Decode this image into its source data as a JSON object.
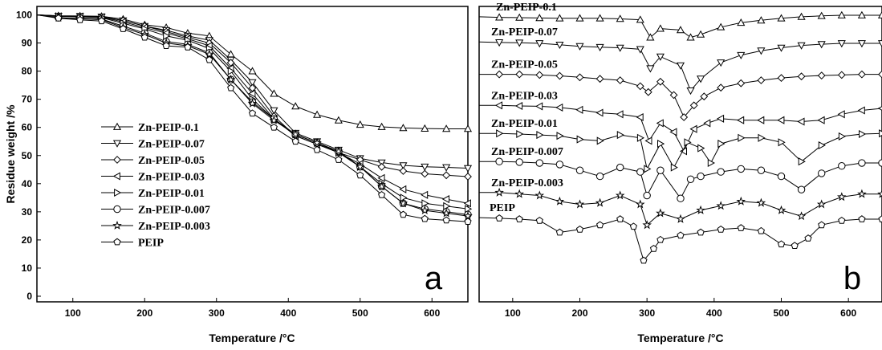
{
  "chart_data": [
    {
      "type": "line",
      "panel_label": "a",
      "xlabel": "Temperature /°C",
      "ylabel": "Residue weight /%",
      "xlim": [
        50,
        650
      ],
      "ylim": [
        -2,
        103
      ],
      "xticks": [
        100,
        200,
        300,
        400,
        500,
        600
      ],
      "yticks": [
        0,
        10,
        20,
        30,
        40,
        50,
        60,
        70,
        80,
        90,
        100
      ],
      "legend_position": "left",
      "series": [
        {
          "name": "Zn-PEIP-0.1",
          "marker": "triangle-up",
          "x": [
            50,
            80,
            110,
            140,
            170,
            200,
            230,
            260,
            290,
            320,
            350,
            380,
            410,
            440,
            470,
            500,
            530,
            560,
            590,
            620,
            650
          ],
          "y": [
            100,
            99.7,
            99.6,
            99.5,
            98.5,
            96.5,
            95.5,
            93.5,
            92.5,
            86,
            80,
            72,
            67.5,
            64.5,
            62.5,
            61,
            60.2,
            59.8,
            59.6,
            59.5,
            59.5
          ]
        },
        {
          "name": "Zn-PEIP-0.07",
          "marker": "triangle-down",
          "x": [
            50,
            80,
            110,
            140,
            170,
            200,
            230,
            260,
            290,
            320,
            350,
            380,
            410,
            440,
            470,
            500,
            530,
            560,
            590,
            620,
            650
          ],
          "y": [
            100,
            99.6,
            99.5,
            99.3,
            98,
            96,
            94.5,
            92.5,
            91,
            84,
            76,
            66,
            58,
            55,
            52,
            49,
            47.5,
            46.5,
            46,
            45.8,
            45.5
          ]
        },
        {
          "name": "Zn-PEIP-0.05",
          "marker": "diamond",
          "x": [
            50,
            80,
            110,
            140,
            170,
            200,
            230,
            260,
            290,
            320,
            350,
            380,
            410,
            440,
            470,
            500,
            530,
            560,
            590,
            620,
            650
          ],
          "y": [
            100,
            99.6,
            99.5,
            99.3,
            98,
            96,
            94,
            92,
            90,
            83,
            74,
            64,
            57,
            54,
            51,
            48.5,
            46,
            44.5,
            43.5,
            43,
            42.5
          ]
        },
        {
          "name": "Zn-PEIP-0.03",
          "marker": "triangle-left",
          "x": [
            50,
            80,
            110,
            140,
            170,
            200,
            230,
            260,
            290,
            320,
            350,
            380,
            410,
            440,
            470,
            500,
            530,
            560,
            590,
            620,
            650
          ],
          "y": [
            100,
            99.5,
            99.4,
            99.2,
            97.5,
            95.5,
            93.5,
            91.5,
            89,
            81,
            72,
            63,
            57,
            54,
            51,
            47,
            42,
            38,
            36,
            34.5,
            33
          ]
        },
        {
          "name": "Zn-PEIP-0.01",
          "marker": "triangle-right",
          "x": [
            50,
            80,
            110,
            140,
            170,
            200,
            230,
            260,
            290,
            320,
            350,
            380,
            410,
            440,
            470,
            500,
            530,
            560,
            590,
            620,
            650
          ],
          "y": [
            100,
            99.5,
            99.3,
            99,
            97,
            95,
            92.5,
            91,
            88,
            80,
            70,
            63,
            57.5,
            54.5,
            51,
            46,
            40,
            35,
            33,
            32,
            31
          ]
        },
        {
          "name": "Zn-PEIP-0.007",
          "marker": "circle",
          "x": [
            50,
            80,
            110,
            140,
            170,
            200,
            230,
            260,
            290,
            320,
            350,
            380,
            410,
            440,
            470,
            500,
            530,
            560,
            590,
            620,
            650
          ],
          "y": [
            100,
            99,
            98.8,
            98.5,
            96,
            93.5,
            90.5,
            89.5,
            86.5,
            77,
            69,
            63,
            57.5,
            54.5,
            51.5,
            46,
            39,
            33,
            31,
            30,
            29
          ]
        },
        {
          "name": "Zn-PEIP-0.003",
          "marker": "star",
          "x": [
            50,
            80,
            110,
            140,
            170,
            200,
            230,
            260,
            290,
            320,
            350,
            380,
            410,
            440,
            470,
            500,
            530,
            560,
            590,
            620,
            650
          ],
          "y": [
            100,
            99,
            98.6,
            98.3,
            95.5,
            93,
            90,
            89,
            86,
            77,
            68.5,
            62.5,
            57.5,
            54.5,
            51.5,
            46,
            39,
            33,
            30.5,
            29.5,
            28.5
          ]
        },
        {
          "name": "PEIP",
          "marker": "pentagon",
          "x": [
            50,
            80,
            110,
            140,
            170,
            200,
            230,
            260,
            290,
            320,
            350,
            380,
            410,
            440,
            470,
            500,
            530,
            560,
            590,
            620,
            650
          ],
          "y": [
            100,
            98.8,
            98.2,
            97.8,
            95,
            92,
            89,
            88.5,
            84,
            74,
            65,
            60,
            55,
            52,
            48.5,
            43,
            36,
            29,
            27.5,
            27,
            26.5
          ]
        }
      ]
    },
    {
      "type": "line",
      "panel_label": "b",
      "xlabel": "Temperature /°C",
      "ylabel": "",
      "xlim": [
        50,
        650
      ],
      "ylim": [
        0,
        100
      ],
      "xticks": [
        100,
        200,
        300,
        400,
        500,
        600
      ],
      "yticks_shown": false,
      "series": [
        {
          "name": "Zn-PEIP-0.1",
          "marker": "triangle-up",
          "x": [
            50,
            80,
            110,
            140,
            170,
            200,
            230,
            260,
            290,
            305,
            320,
            350,
            365,
            380,
            410,
            440,
            470,
            500,
            530,
            560,
            590,
            620,
            650
          ],
          "y": [
            96.5,
            96.3,
            96.2,
            96.1,
            96,
            96,
            96,
            95.8,
            95.5,
            89.5,
            92.5,
            92,
            89.5,
            90.5,
            93,
            94.5,
            95.3,
            96,
            96.5,
            96.8,
            97,
            97,
            97
          ]
        },
        {
          "name": "Zn-PEIP-0.07",
          "marker": "triangle-down",
          "x": [
            50,
            80,
            110,
            140,
            170,
            200,
            230,
            260,
            290,
            305,
            320,
            350,
            365,
            380,
            410,
            440,
            470,
            500,
            530,
            560,
            590,
            620,
            650
          ],
          "y": [
            88,
            87.8,
            87.7,
            87.5,
            87,
            86.5,
            86.2,
            86,
            85.5,
            79,
            83,
            80,
            71.5,
            75.5,
            81,
            83.5,
            85,
            86,
            86.8,
            87.2,
            87.5,
            87.5,
            87.5
          ]
        },
        {
          "name": "Zn-PEIP-0.05",
          "marker": "diamond",
          "x": [
            50,
            80,
            110,
            140,
            170,
            200,
            230,
            260,
            290,
            302,
            320,
            340,
            355,
            370,
            385,
            410,
            440,
            470,
            500,
            530,
            560,
            590,
            620,
            650
          ],
          "y": [
            77,
            77,
            77,
            76.8,
            76.5,
            76,
            75.5,
            75,
            73,
            71,
            74.5,
            70,
            62.5,
            66.5,
            69.5,
            72.5,
            74,
            75,
            75.8,
            76.3,
            76.6,
            76.8,
            77,
            77
          ]
        },
        {
          "name": "Zn-PEIP-0.03",
          "marker": "triangle-left",
          "x": [
            50,
            80,
            110,
            140,
            170,
            200,
            230,
            260,
            290,
            303,
            320,
            340,
            355,
            370,
            390,
            410,
            440,
            470,
            500,
            530,
            560,
            590,
            620,
            650
          ],
          "y": [
            66.5,
            66.5,
            66.3,
            66.2,
            65.8,
            65,
            64,
            63.5,
            62.5,
            54.5,
            60.5,
            57.5,
            51,
            58.5,
            60.5,
            62,
            61.5,
            61.5,
            61.5,
            61,
            61.5,
            63.5,
            64.8,
            65.5
          ]
        },
        {
          "name": "Zn-PEIP-0.01",
          "marker": "triangle-right",
          "x": [
            50,
            80,
            110,
            140,
            170,
            200,
            230,
            260,
            290,
            300,
            320,
            340,
            360,
            380,
            395,
            410,
            440,
            470,
            500,
            530,
            560,
            590,
            620,
            650
          ],
          "y": [
            57,
            57,
            56.8,
            56.5,
            56.2,
            55,
            54.5,
            56.5,
            55.5,
            45,
            53.5,
            45.5,
            54,
            52,
            47,
            53.5,
            55.5,
            55.5,
            54,
            47.5,
            53,
            56,
            56.8,
            57
          ]
        },
        {
          "name": "Zn-PEIP-0.007",
          "marker": "circle",
          "x": [
            50,
            80,
            110,
            140,
            170,
            200,
            230,
            260,
            290,
            300,
            320,
            350,
            365,
            380,
            410,
            440,
            470,
            500,
            530,
            560,
            590,
            620,
            650
          ],
          "y": [
            47.5,
            47.5,
            47.3,
            47,
            46.5,
            44.5,
            42.5,
            45.5,
            44,
            36,
            44.5,
            35,
            41.5,
            42.5,
            44,
            45,
            44.5,
            42.5,
            38,
            43.5,
            46,
            47,
            47
          ]
        },
        {
          "name": "Zn-PEIP-0.003",
          "marker": "star",
          "x": [
            50,
            80,
            110,
            140,
            170,
            200,
            230,
            260,
            290,
            300,
            320,
            350,
            380,
            410,
            440,
            470,
            500,
            530,
            560,
            590,
            620,
            650
          ],
          "y": [
            37,
            37,
            36.5,
            36,
            34,
            33,
            33.5,
            36,
            33,
            26,
            30,
            28,
            31,
            32.5,
            34,
            33.5,
            31,
            29,
            33,
            35.5,
            36.5,
            36.5
          ]
        },
        {
          "name": "PEIP",
          "marker": "pentagon",
          "x": [
            50,
            80,
            110,
            140,
            170,
            200,
            230,
            260,
            280,
            295,
            310,
            320,
            350,
            380,
            410,
            440,
            470,
            500,
            520,
            540,
            560,
            590,
            620,
            650
          ],
          "y": [
            28.5,
            28.3,
            28,
            27.5,
            23.5,
            24.5,
            26,
            28,
            25.5,
            14,
            18,
            21,
            22.5,
            23.5,
            24.5,
            25,
            24,
            19.5,
            19,
            21.5,
            26,
            27.5,
            28,
            28
          ]
        }
      ]
    }
  ]
}
